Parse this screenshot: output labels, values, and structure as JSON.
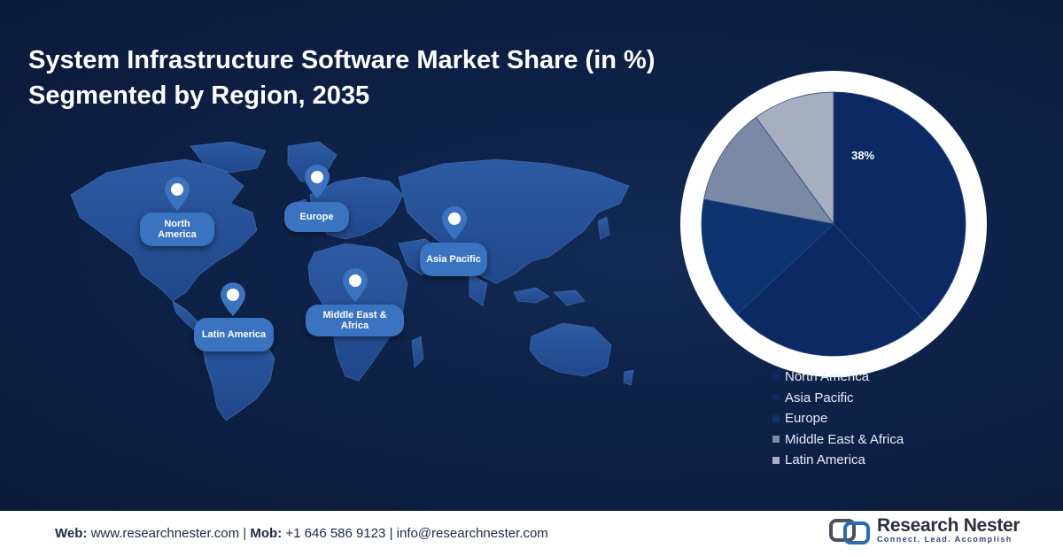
{
  "title": {
    "line1": "System Infrastructure Software Market Share (in %)",
    "line2": "Segmented by Region, 2035"
  },
  "map": {
    "regions": [
      {
        "id": "north-america",
        "label": "North America"
      },
      {
        "id": "europe",
        "label": "Europe"
      },
      {
        "id": "asia-pacific",
        "label": "Asia Pacific"
      },
      {
        "id": "latin-america",
        "label": "Latin America"
      },
      {
        "id": "middle-east-africa",
        "label": "Middle East & Africa"
      }
    ]
  },
  "chart_data": {
    "type": "pie",
    "categories": [
      "North America",
      "Asia Pacific",
      "Europe",
      "Middle East & Africa",
      "Latin America"
    ],
    "values": [
      38,
      25,
      15,
      12,
      10
    ],
    "colors": [
      "#0b2a63",
      "#0b2a63",
      "#0d3371",
      "#7a8aa5",
      "#a6aec0"
    ],
    "data_labels": [
      "38%",
      "",
      "",
      "",
      ""
    ],
    "legend_position": "bottom-right"
  },
  "colors": {
    "background": "#0d2045",
    "pie_border": "#ffffff",
    "pin": "#3a73c0"
  },
  "footer": {
    "web_label": "Web:",
    "web_value": "www.researchnester.com",
    "sep1": " | ",
    "mob_label": "Mob:",
    "mob_value": "+1 646 586 9123",
    "sep2": " | ",
    "email": "info@researchnester.com"
  },
  "logo": {
    "name": "Research Nester",
    "tagline": "Connect. Lead. Accomplish"
  }
}
